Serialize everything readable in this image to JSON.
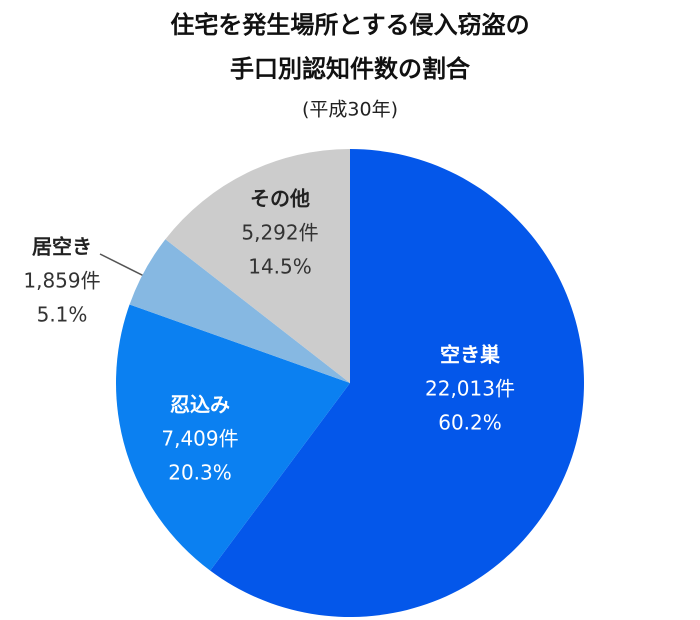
{
  "chart_data": {
    "type": "pie",
    "title": [
      "住宅を発生場所とする侵入窃盗の",
      "手口別認知件数の割合"
    ],
    "subtitle": "(平成30年)",
    "categories": [
      "空き巣",
      "忍込み",
      "居空き",
      "その他"
    ],
    "values": [
      22013,
      7409,
      1859,
      5292
    ],
    "value_labels": [
      "22,013件",
      "7,409件",
      "1,859件",
      "5,292件"
    ],
    "percentages": [
      60.2,
      20.3,
      5.1,
      14.5
    ],
    "percentage_labels": [
      "60.2%",
      "20.3%",
      "5.1%",
      "14.5%"
    ],
    "colors": [
      "#0457ea",
      "#0b80f1",
      "#86b8e2",
      "#cccccc"
    ]
  }
}
